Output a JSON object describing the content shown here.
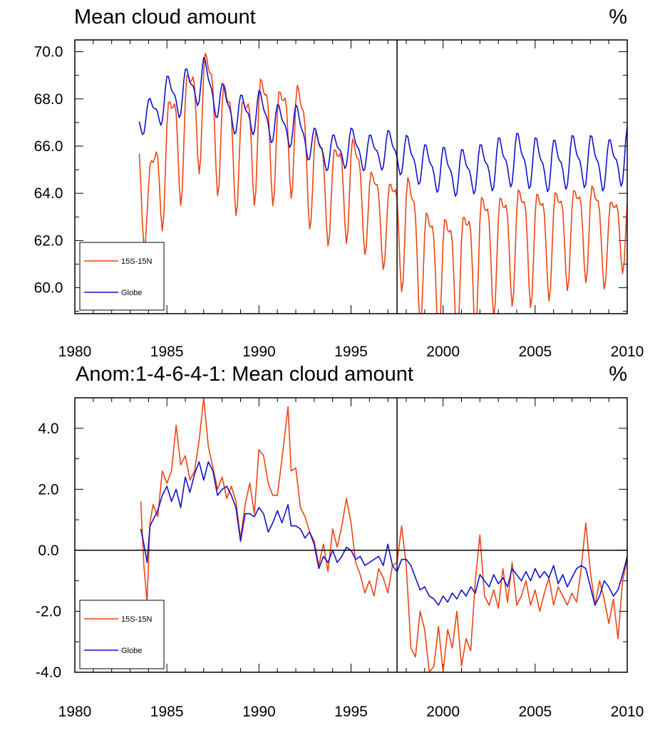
{
  "chart_data": [
    {
      "type": "line",
      "title": "Mean cloud amount",
      "units": "%",
      "xlim": [
        1980,
        2010
      ],
      "ylim": [
        58.9,
        70.5
      ],
      "x_ticks": [
        1980,
        1985,
        1990,
        1995,
        2000,
        2005,
        2010
      ],
      "y_ticks": [
        60.0,
        62.0,
        64.0,
        66.0,
        68.0,
        70.0
      ],
      "y_tick_labels": [
        "60.0",
        "62.0",
        "64.0",
        "66.0",
        "68.0",
        "70.0"
      ],
      "vertical_marker_x": 1997.5,
      "legend": [
        "15S-15N",
        "Globe"
      ],
      "legend_position": "bottom-left",
      "seasonal_cycle_period_years": 1,
      "series": [
        {
          "name": "15S-15N",
          "color": "#ee4411",
          "trend_x": [
            1983.5,
            1984,
            1985,
            1986,
            1987,
            1988,
            1989,
            1990,
            1991,
            1992,
            1993,
            1994,
            1995,
            1996,
            1997,
            1998,
            1999,
            2000,
            2001,
            2002,
            2003,
            2004,
            2005,
            2006,
            2007,
            2008,
            2009,
            2010
          ],
          "trend_y": [
            65.0,
            63.5,
            66.0,
            67.0,
            68.3,
            66.8,
            66.0,
            67.0,
            66.5,
            67.0,
            65.0,
            64.3,
            64.8,
            63.6,
            63.0,
            62.9,
            61.3,
            61.0,
            61.0,
            61.8,
            62.0,
            62.4,
            62.2,
            62.4,
            62.6,
            62.9,
            62.2,
            63.0
          ],
          "seasonal_amplitude": [
            2.0,
            2.2,
            2.6,
            2.8,
            2.6,
            2.8,
            2.6,
            2.8,
            2.6,
            2.6,
            2.5,
            2.2,
            2.4,
            2.0,
            2.0,
            2.8,
            2.8,
            2.8,
            2.8,
            3.0,
            2.6,
            2.6,
            2.6,
            2.4,
            2.2,
            2.2,
            2.0,
            1.8
          ]
        },
        {
          "name": "Globe",
          "color": "#1111cc",
          "trend_x": [
            1983.5,
            1984,
            1985,
            1986,
            1987,
            1988,
            1989,
            1990,
            1991,
            1992,
            1993,
            1994,
            1995,
            1996,
            1997,
            1998,
            1999,
            2000,
            2001,
            2002,
            2003,
            2004,
            2005,
            2006,
            2007,
            2008,
            2009,
            2010
          ],
          "trend_y": [
            67.2,
            67.2,
            68.1,
            68.3,
            68.9,
            67.8,
            67.3,
            67.5,
            66.9,
            66.9,
            66.0,
            65.7,
            66.0,
            65.7,
            65.9,
            65.6,
            65.2,
            65.0,
            64.9,
            65.1,
            65.3,
            65.5,
            65.3,
            65.2,
            65.4,
            65.4,
            65.2,
            65.7
          ],
          "seasonal_amplitude": [
            0.6,
            0.8,
            0.9,
            1.0,
            0.9,
            0.9,
            0.9,
            0.9,
            0.9,
            0.9,
            0.8,
            0.8,
            0.8,
            0.8,
            0.8,
            0.9,
            0.9,
            1.0,
            1.0,
            1.0,
            1.1,
            1.1,
            1.1,
            1.1,
            1.1,
            1.1,
            1.1,
            1.2
          ]
        }
      ]
    },
    {
      "type": "line",
      "title": "Anom:1-4-6-4-1: Mean cloud amount",
      "units": "%",
      "xlim": [
        1980,
        2010
      ],
      "ylim": [
        -4.0,
        5.0
      ],
      "x_ticks": [
        1980,
        1985,
        1990,
        1995,
        2000,
        2005,
        2010
      ],
      "y_ticks": [
        -4.0,
        -2.0,
        0.0,
        2.0,
        4.0
      ],
      "y_tick_labels": [
        "-4.0",
        "-2.0",
        "0.0",
        "2.0",
        "4.0"
      ],
      "zero_line": true,
      "vertical_marker_x": 1997.5,
      "legend": [
        "15S-15N",
        "Globe"
      ],
      "legend_position": "bottom-left",
      "series": [
        {
          "name": "15S-15N",
          "color": "#ee4411",
          "x": [
            1983.58,
            1983.75,
            1983.92,
            1984.08,
            1984.25,
            1984.5,
            1984.75,
            1985.0,
            1985.25,
            1985.5,
            1985.75,
            1986.0,
            1986.25,
            1986.5,
            1986.75,
            1987.0,
            1987.25,
            1987.5,
            1987.75,
            1988.0,
            1988.25,
            1988.5,
            1988.75,
            1989.0,
            1989.25,
            1989.5,
            1989.75,
            1990.0,
            1990.25,
            1990.5,
            1990.75,
            1991.0,
            1991.25,
            1991.58,
            1991.75,
            1992.0,
            1992.25,
            1992.5,
            1992.75,
            1993.0,
            1993.25,
            1993.5,
            1993.75,
            1994.0,
            1994.25,
            1994.5,
            1994.75,
            1995.0,
            1995.25,
            1995.5,
            1995.75,
            1996.0,
            1996.25,
            1996.5,
            1996.75,
            1997.0,
            1997.25,
            1997.5,
            1997.75,
            1998.0,
            1998.25,
            1998.5,
            1998.75,
            1999.0,
            1999.25,
            1999.5,
            1999.75,
            2000.0,
            2000.25,
            2000.5,
            2000.75,
            2001.0,
            2001.25,
            2001.5,
            2001.75,
            2002.0,
            2002.25,
            2002.5,
            2002.75,
            2003.0,
            2003.25,
            2003.5,
            2003.75,
            2004.0,
            2004.25,
            2004.5,
            2004.75,
            2005.0,
            2005.25,
            2005.5,
            2005.75,
            2006.0,
            2006.25,
            2006.5,
            2006.75,
            2007.0,
            2007.25,
            2007.5,
            2007.75,
            2008.0,
            2008.25,
            2008.5,
            2008.75,
            2009.0,
            2009.25,
            2009.5,
            2009.75,
            2010.0
          ],
          "y": [
            1.6,
            -0.5,
            -1.7,
            0.9,
            1.5,
            1.1,
            2.6,
            2.2,
            2.6,
            4.1,
            2.8,
            3.1,
            2.3,
            2.6,
            3.6,
            5.0,
            3.4,
            2.7,
            2.0,
            2.4,
            1.7,
            2.1,
            1.6,
            0.4,
            1.5,
            2.2,
            1.2,
            3.3,
            3.1,
            2.2,
            1.8,
            1.8,
            3.0,
            4.7,
            2.6,
            2.7,
            1.4,
            1.1,
            0.6,
            0.3,
            -0.5,
            0.2,
            -0.7,
            0.7,
            0.1,
            0.8,
            1.7,
            0.9,
            -0.4,
            -0.8,
            -1.4,
            -1.0,
            -1.5,
            -0.6,
            -0.9,
            -1.4,
            -0.5,
            -0.4,
            0.8,
            -0.5,
            -3.2,
            -3.5,
            -2.0,
            -2.6,
            -4.0,
            -3.8,
            -2.5,
            -4.0,
            -2.6,
            -3.2,
            -2.0,
            -3.8,
            -2.9,
            -3.3,
            -1.0,
            0.5,
            -1.5,
            -1.8,
            -1.3,
            -1.9,
            -0.6,
            -1.7,
            -0.4,
            -1.8,
            -1.5,
            -1.0,
            -1.8,
            -1.3,
            -2.0,
            -1.4,
            -0.9,
            -1.8,
            -1.2,
            -1.5,
            -1.8,
            -1.4,
            -1.7,
            -0.6,
            0.9,
            -0.7,
            -1.8,
            -1.0,
            -1.6,
            -2.4,
            -1.6,
            -2.9,
            -1.0,
            -0.3
          ]
        },
        {
          "name": "Globe",
          "color": "#1111cc",
          "x": [
            1983.58,
            1983.75,
            1983.92,
            1984.08,
            1984.25,
            1984.5,
            1984.75,
            1985.0,
            1985.25,
            1985.5,
            1985.75,
            1986.0,
            1986.25,
            1986.5,
            1986.75,
            1987.0,
            1987.25,
            1987.5,
            1987.75,
            1988.0,
            1988.25,
            1988.5,
            1988.75,
            1989.0,
            1989.25,
            1989.5,
            1989.75,
            1990.0,
            1990.25,
            1990.5,
            1990.75,
            1991.0,
            1991.25,
            1991.58,
            1991.75,
            1992.0,
            1992.25,
            1992.5,
            1992.75,
            1993.0,
            1993.25,
            1993.5,
            1993.75,
            1994.0,
            1994.25,
            1994.5,
            1994.75,
            1995.0,
            1995.25,
            1995.5,
            1995.75,
            1996.0,
            1996.25,
            1996.5,
            1996.75,
            1997.0,
            1997.25,
            1997.5,
            1997.75,
            1998.0,
            1998.25,
            1998.5,
            1998.75,
            1999.0,
            1999.25,
            1999.5,
            1999.75,
            2000.0,
            2000.25,
            2000.5,
            2000.75,
            2001.0,
            2001.25,
            2001.5,
            2001.75,
            2002.0,
            2002.25,
            2002.5,
            2002.75,
            2003.0,
            2003.25,
            2003.5,
            2003.75,
            2004.0,
            2004.25,
            2004.5,
            2004.75,
            2005.0,
            2005.25,
            2005.5,
            2005.75,
            2006.0,
            2006.25,
            2006.5,
            2006.75,
            2007.0,
            2007.25,
            2007.5,
            2007.75,
            2008.0,
            2008.25,
            2008.5,
            2008.75,
            2009.0,
            2009.25,
            2009.5,
            2009.75,
            2010.0
          ],
          "y": [
            0.7,
            0.2,
            -0.4,
            0.8,
            1.0,
            1.3,
            1.8,
            2.1,
            1.6,
            2.0,
            1.4,
            2.4,
            1.9,
            2.5,
            2.9,
            2.3,
            2.9,
            2.6,
            1.8,
            2.0,
            2.1,
            1.8,
            1.4,
            0.3,
            1.2,
            1.2,
            1.1,
            1.4,
            1.2,
            0.6,
            0.9,
            1.3,
            0.9,
            1.5,
            0.8,
            0.8,
            0.7,
            0.4,
            0.6,
            0.2,
            -0.6,
            -0.2,
            -0.4,
            0.0,
            -0.4,
            -0.2,
            0.1,
            0.0,
            -0.3,
            -0.2,
            -0.5,
            -0.4,
            -0.3,
            -0.2,
            -0.5,
            0.2,
            -0.5,
            -0.7,
            -0.3,
            -0.3,
            -0.5,
            -0.9,
            -1.3,
            -1.2,
            -1.5,
            -1.6,
            -1.8,
            -1.5,
            -1.7,
            -1.4,
            -1.6,
            -1.3,
            -1.5,
            -1.2,
            -1.4,
            -0.8,
            -1.0,
            -1.2,
            -0.8,
            -1.1,
            -0.9,
            -1.2,
            -0.6,
            -0.8,
            -1.0,
            -0.7,
            -1.0,
            -0.6,
            -0.9,
            -0.7,
            -0.9,
            -0.5,
            -1.1,
            -0.8,
            -1.2,
            -0.9,
            -0.6,
            -0.5,
            -0.6,
            -1.2,
            -1.8,
            -1.5,
            -1.0,
            -1.2,
            -1.5,
            -1.3,
            -0.8,
            -0.2
          ]
        }
      ]
    }
  ]
}
